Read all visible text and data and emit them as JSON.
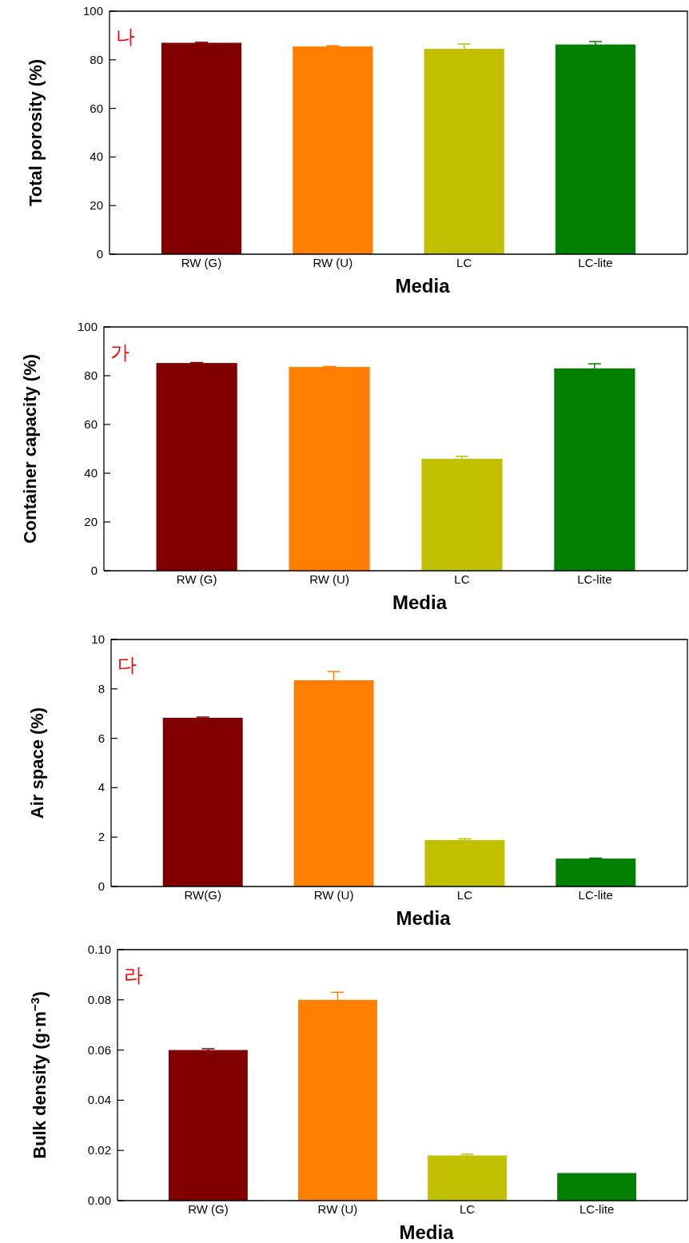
{
  "chart_data": [
    {
      "type": "bar",
      "ylabel": "Total porosity (%)",
      "xlabel": "Media",
      "categories": [
        "RW (G)",
        "RW (U)",
        "LC",
        "LC-lite"
      ],
      "colors": [
        "#800000",
        "#ff8000",
        "#c0c000",
        "#008000"
      ],
      "values": [
        87.0,
        85.5,
        84.5,
        86.3
      ],
      "errors": [
        0.2,
        0.3,
        2.0,
        1.2
      ],
      "ylim": [
        0,
        100
      ],
      "yticks": [
        0,
        20,
        40,
        60,
        80,
        100
      ],
      "annotations": [
        "나"
      ]
    },
    {
      "type": "bar",
      "ylabel": "Container capacity (%)",
      "xlabel": "Media",
      "categories": [
        "RW (G)",
        "RW (U)",
        "LC",
        "LC-lite"
      ],
      "colors": [
        "#800000",
        "#ff8000",
        "#c0c000",
        "#008000"
      ],
      "values": [
        85.2,
        83.6,
        45.9,
        83.0
      ],
      "errors": [
        0.2,
        0.2,
        1.0,
        1.9
      ],
      "ylim": [
        0,
        100
      ],
      "yticks": [
        0,
        20,
        40,
        60,
        80,
        100
      ],
      "annotations": [
        "가"
      ]
    },
    {
      "type": "bar",
      "ylabel": "Air space (%)",
      "xlabel": "Media",
      "categories": [
        "RW(G)",
        "RW (U)",
        "LC",
        "LC-lite"
      ],
      "colors": [
        "#800000",
        "#ff8000",
        "#c0c000",
        "#008000"
      ],
      "values": [
        6.83,
        8.35,
        1.88,
        1.13
      ],
      "errors": [
        0.03,
        0.35,
        0.05,
        0.02
      ],
      "ylim": [
        0,
        10
      ],
      "yticks": [
        0,
        2,
        4,
        6,
        8,
        10
      ],
      "annotations": [
        "다"
      ]
    },
    {
      "type": "bar",
      "ylabel": "Bulk density (g·m$^{−3}$)",
      "xlabel": "Media",
      "categories": [
        "RW (G)",
        "RW (U)",
        "LC",
        "LC-lite"
      ],
      "colors": [
        "#800000",
        "#ff8000",
        "#c0c000",
        "#008000"
      ],
      "values": [
        0.06,
        0.08,
        0.018,
        0.011
      ],
      "errors": [
        0.0005,
        0.003,
        0.0005,
        null
      ],
      "ylim": [
        0,
        0.1
      ],
      "yticks": [
        {
          "value": 0,
          "label": "0.00"
        },
        {
          "value": 0.02,
          "label": "0.02"
        },
        {
          "value": 0.04,
          "label": "0.04"
        },
        {
          "value": 0.06,
          "label": "0.06"
        },
        {
          "value": 0.08,
          "label": "0.08"
        },
        {
          "value": 0.1,
          "label": "0.10"
        }
      ],
      "annotations": [
        "라"
      ]
    }
  ]
}
